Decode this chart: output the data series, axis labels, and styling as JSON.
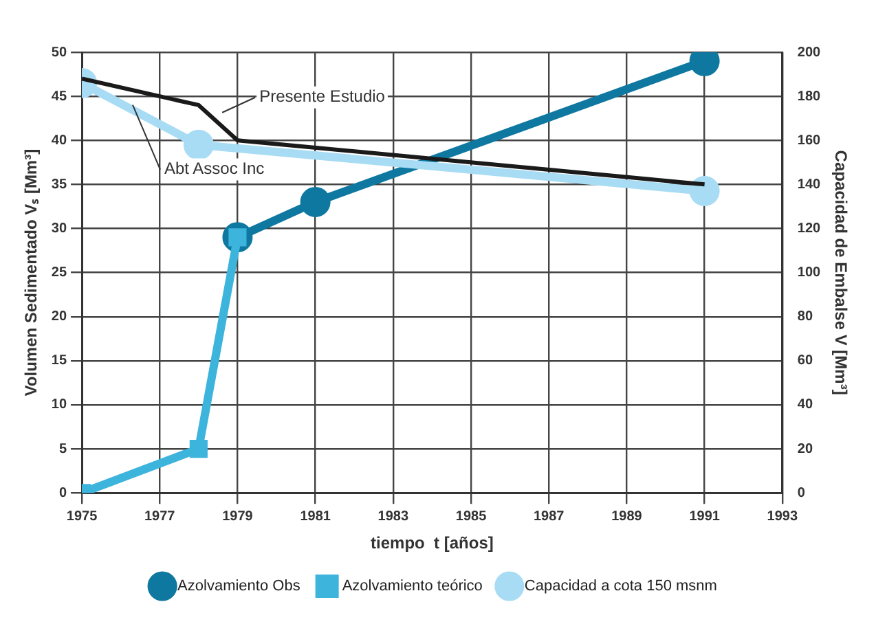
{
  "chart_data": {
    "type": "line",
    "xlabel": "tiempo  t [años]",
    "ylabel": "Volumen Sedimentado Vₛ [Mm³]",
    "y2label": "Capacidad de Embalse V [Mm³]",
    "xlim": [
      1975,
      1993
    ],
    "xticks": [
      1975,
      1977,
      1979,
      1981,
      1983,
      1985,
      1987,
      1989,
      1991,
      1993
    ],
    "ylim": [
      0,
      50
    ],
    "yticks": [
      0,
      5,
      10,
      15,
      20,
      25,
      30,
      35,
      40,
      45,
      50
    ],
    "y2lim": [
      0,
      200
    ],
    "y2ticks": [
      0,
      20,
      40,
      60,
      80,
      100,
      120,
      140,
      160,
      180,
      200
    ],
    "grid": true,
    "legend": "bottom",
    "series": [
      {
        "name": "Azolvamiento Obs",
        "color": "#0e78a0",
        "marker": "circle",
        "x": [
          1979,
          1981,
          1991
        ],
        "values": [
          29,
          33,
          49
        ]
      },
      {
        "name": "Azolvamiento teórico",
        "color": "#3cb4dc",
        "marker": "square",
        "x": [
          1975,
          1978,
          1979
        ],
        "values": [
          0,
          5,
          29
        ]
      },
      {
        "name": "Capacidad a cota 150 msnm",
        "color": "#a8dcf4",
        "marker": "circle",
        "axis": "y2",
        "x": [
          1975,
          1978,
          1991
        ],
        "values": [
          186,
          158,
          137
        ]
      },
      {
        "color": "#1a1a1a",
        "marker": "none",
        "axis": "y2",
        "x": [
          1975,
          1978,
          1979,
          1991
        ],
        "values": [
          188,
          176,
          160,
          140
        ]
      }
    ],
    "annotations": [
      {
        "text": "Presente Estudio",
        "x": 1978.5,
        "y": 43
      },
      {
        "text": "Abt Assoc Inc",
        "x": 1976.2,
        "y": 44.5
      }
    ]
  }
}
